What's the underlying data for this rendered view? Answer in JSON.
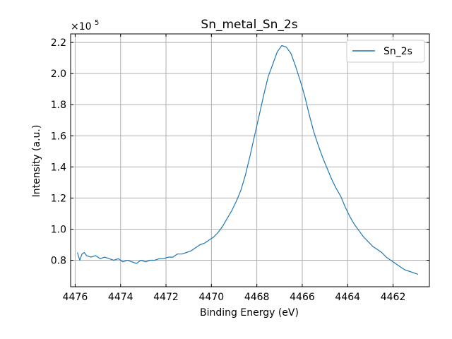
{
  "chart_data": {
    "type": "line",
    "title": "Sn_metal_Sn_2s",
    "xlabel": "Binding Energy (eV)",
    "ylabel": "Intensity (a.u.)",
    "y_multiplier_label": "×10",
    "y_multiplier_exponent": "5",
    "x_reversed": true,
    "xlim": [
      4476.2,
      4460.4
    ],
    "ylim": [
      0.63,
      2.255
    ],
    "x_ticks": [
      4476,
      4474,
      4472,
      4470,
      4468,
      4466,
      4464,
      4462
    ],
    "x_tick_labels": [
      "4476",
      "4474",
      "4472",
      "4470",
      "4468",
      "4466",
      "4464",
      "4462"
    ],
    "y_ticks": [
      0.8,
      1.0,
      1.2,
      1.4,
      1.6,
      1.8,
      2.0,
      2.2
    ],
    "y_tick_labels": [
      "0.8",
      "1.0",
      "1.2",
      "1.4",
      "1.6",
      "1.8",
      "2.0",
      "2.2"
    ],
    "grid": true,
    "legend_position": "top-right",
    "series": [
      {
        "name": "Sn_2s",
        "color": "#1f77b4",
        "points": [
          [
            4475.9,
            0.85
          ],
          [
            4475.8,
            0.8
          ],
          [
            4475.7,
            0.84
          ],
          [
            4475.6,
            0.85
          ],
          [
            4475.5,
            0.83
          ],
          [
            4475.3,
            0.82
          ],
          [
            4475.1,
            0.83
          ],
          [
            4474.9,
            0.81
          ],
          [
            4474.7,
            0.82
          ],
          [
            4474.5,
            0.81
          ],
          [
            4474.3,
            0.8
          ],
          [
            4474.1,
            0.81
          ],
          [
            4473.9,
            0.79
          ],
          [
            4473.7,
            0.8
          ],
          [
            4473.5,
            0.79
          ],
          [
            4473.3,
            0.78
          ],
          [
            4473.1,
            0.8
          ],
          [
            4472.9,
            0.79
          ],
          [
            4472.7,
            0.8
          ],
          [
            4472.5,
            0.8
          ],
          [
            4472.3,
            0.81
          ],
          [
            4472.1,
            0.81
          ],
          [
            4471.9,
            0.82
          ],
          [
            4471.7,
            0.82
          ],
          [
            4471.5,
            0.84
          ],
          [
            4471.3,
            0.84
          ],
          [
            4471.1,
            0.85
          ],
          [
            4470.9,
            0.86
          ],
          [
            4470.7,
            0.88
          ],
          [
            4470.5,
            0.9
          ],
          [
            4470.3,
            0.91
          ],
          [
            4470.1,
            0.93
          ],
          [
            4469.9,
            0.95
          ],
          [
            4469.7,
            0.98
          ],
          [
            4469.5,
            1.02
          ],
          [
            4469.3,
            1.07
          ],
          [
            4469.1,
            1.12
          ],
          [
            4468.9,
            1.18
          ],
          [
            4468.7,
            1.25
          ],
          [
            4468.5,
            1.35
          ],
          [
            4468.3,
            1.47
          ],
          [
            4468.1,
            1.6
          ],
          [
            4467.9,
            1.73
          ],
          [
            4467.7,
            1.86
          ],
          [
            4467.5,
            1.98
          ],
          [
            4467.3,
            2.06
          ],
          [
            4467.1,
            2.14
          ],
          [
            4466.9,
            2.18
          ],
          [
            4466.7,
            2.17
          ],
          [
            4466.5,
            2.13
          ],
          [
            4466.3,
            2.05
          ],
          [
            4466.1,
            1.96
          ],
          [
            4465.9,
            1.86
          ],
          [
            4465.7,
            1.74
          ],
          [
            4465.5,
            1.63
          ],
          [
            4465.3,
            1.54
          ],
          [
            4465.1,
            1.46
          ],
          [
            4464.9,
            1.39
          ],
          [
            4464.7,
            1.32
          ],
          [
            4464.5,
            1.26
          ],
          [
            4464.3,
            1.21
          ],
          [
            4464.1,
            1.14
          ],
          [
            4463.9,
            1.08
          ],
          [
            4463.7,
            1.03
          ],
          [
            4463.5,
            0.99
          ],
          [
            4463.3,
            0.95
          ],
          [
            4463.1,
            0.92
          ],
          [
            4462.9,
            0.89
          ],
          [
            4462.7,
            0.87
          ],
          [
            4462.5,
            0.85
          ],
          [
            4462.3,
            0.82
          ],
          [
            4462.1,
            0.8
          ],
          [
            4461.9,
            0.78
          ],
          [
            4461.7,
            0.76
          ],
          [
            4461.5,
            0.74
          ],
          [
            4461.3,
            0.73
          ],
          [
            4461.1,
            0.72
          ],
          [
            4460.9,
            0.71
          ]
        ]
      }
    ]
  }
}
